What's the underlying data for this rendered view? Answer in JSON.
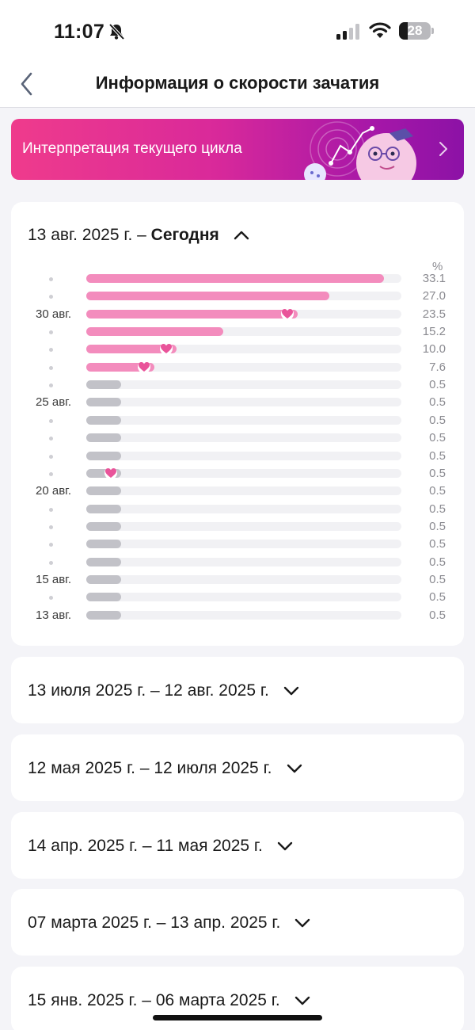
{
  "status_bar": {
    "time": "11:07",
    "battery": "28",
    "battery_level": 0.28
  },
  "nav": {
    "title": "Информация о скорости зачатия"
  },
  "banner": {
    "label": "Интерпретация текущего цикла"
  },
  "colors": {
    "pink_bar": "#f38cbd",
    "gray_bar": "#c2c2c8",
    "heart": "#e9549a",
    "banner_start": "#ef3b8c",
    "banner_end": "#8c12a6"
  },
  "active_cycle": {
    "range_start": "13 авг. 2025 г.",
    "dash": "–",
    "range_end": "Сегодня",
    "unit": "%",
    "rows": [
      {
        "label": "",
        "value": "33.1",
        "percent": 33.1,
        "color": "pink",
        "heart": false
      },
      {
        "label": "",
        "value": "27.0",
        "percent": 27.0,
        "color": "pink",
        "heart": false
      },
      {
        "label": "30 авг.",
        "value": "23.5",
        "percent": 23.5,
        "color": "pink",
        "heart": true
      },
      {
        "label": "",
        "value": "15.2",
        "percent": 15.2,
        "color": "pink",
        "heart": false
      },
      {
        "label": "",
        "value": "10.0",
        "percent": 10.0,
        "color": "pink",
        "heart": true
      },
      {
        "label": "",
        "value": "7.6",
        "percent": 7.6,
        "color": "pink",
        "heart": true
      },
      {
        "label": "",
        "value": "0.5",
        "percent": 0.5,
        "color": "gray",
        "heart": false
      },
      {
        "label": "25 авг.",
        "value": "0.5",
        "percent": 0.5,
        "color": "gray",
        "heart": false
      },
      {
        "label": "",
        "value": "0.5",
        "percent": 0.5,
        "color": "gray",
        "heart": false
      },
      {
        "label": "",
        "value": "0.5",
        "percent": 0.5,
        "color": "gray",
        "heart": false
      },
      {
        "label": "",
        "value": "0.5",
        "percent": 0.5,
        "color": "gray",
        "heart": false
      },
      {
        "label": "",
        "value": "0.5",
        "percent": 0.5,
        "color": "gray",
        "heart": true
      },
      {
        "label": "20 авг.",
        "value": "0.5",
        "percent": 0.5,
        "color": "gray",
        "heart": false
      },
      {
        "label": "",
        "value": "0.5",
        "percent": 0.5,
        "color": "gray",
        "heart": false
      },
      {
        "label": "",
        "value": "0.5",
        "percent": 0.5,
        "color": "gray",
        "heart": false
      },
      {
        "label": "",
        "value": "0.5",
        "percent": 0.5,
        "color": "gray",
        "heart": false
      },
      {
        "label": "",
        "value": "0.5",
        "percent": 0.5,
        "color": "gray",
        "heart": false
      },
      {
        "label": "15 авг.",
        "value": "0.5",
        "percent": 0.5,
        "color": "gray",
        "heart": false
      },
      {
        "label": "",
        "value": "0.5",
        "percent": 0.5,
        "color": "gray",
        "heart": false
      },
      {
        "label": "13 авг.",
        "value": "0.5",
        "percent": 0.5,
        "color": "gray",
        "heart": false
      }
    ]
  },
  "past_cycles": [
    {
      "range": "13 июля 2025 г. – 12 авг. 2025 г."
    },
    {
      "range": "12 мая 2025 г. – 12 июля 2025 г."
    },
    {
      "range": "14 апр. 2025 г. – 11 мая 2025 г."
    },
    {
      "range": "07 марта 2025 г. – 13 апр. 2025 г."
    },
    {
      "range": "15 янв. 2025 г. – 06 марта 2025 г."
    }
  ]
}
